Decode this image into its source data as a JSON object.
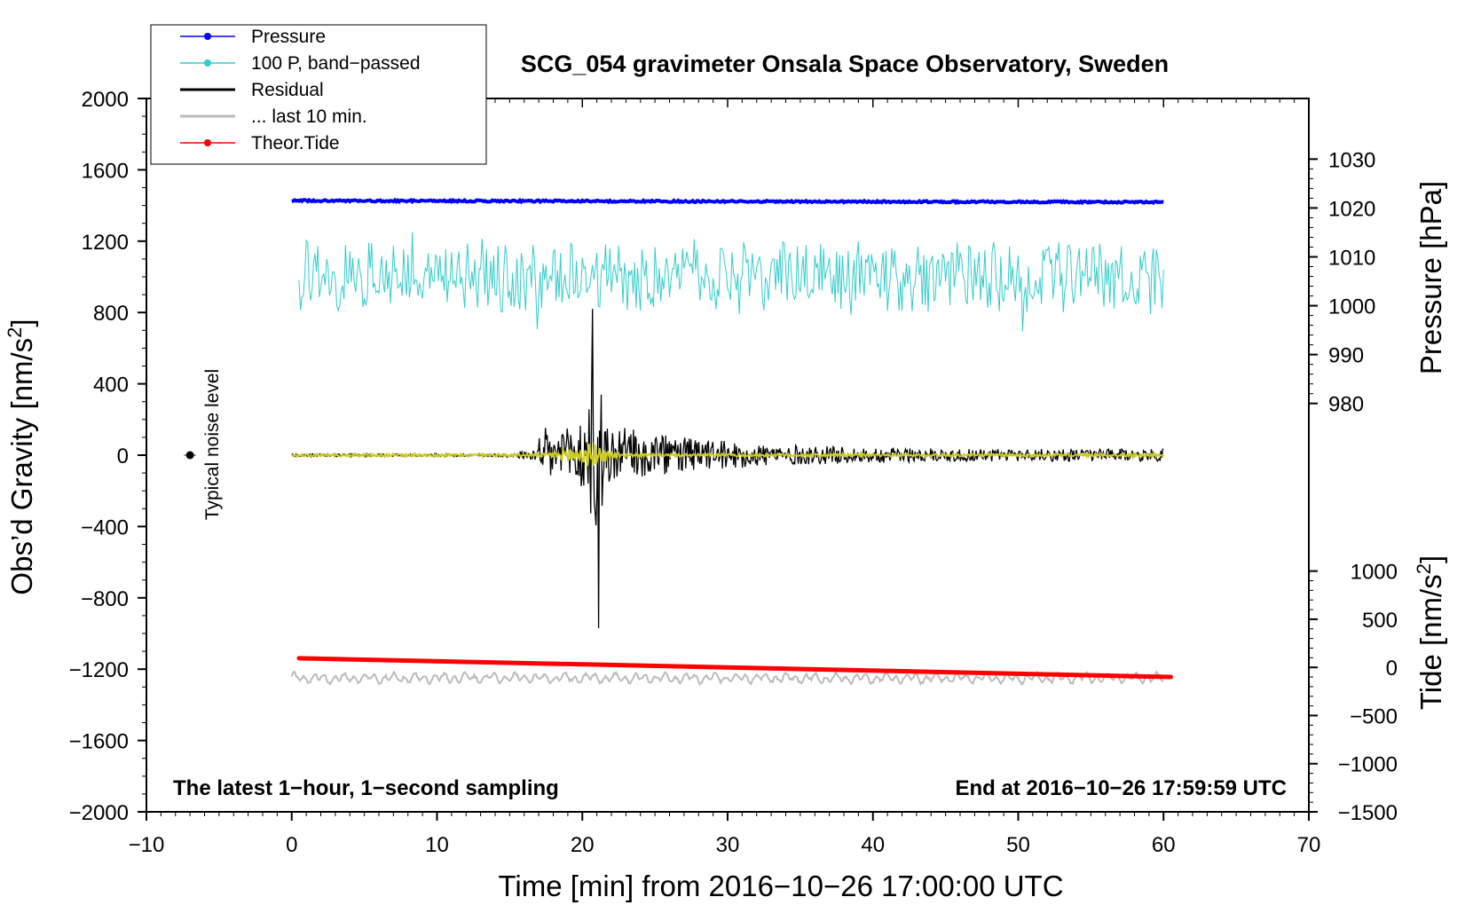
{
  "chart_data": {
    "type": "line",
    "title": "SCG_054 gravimeter Onsala Space Observatory, Sweden",
    "xlabel": "Time [min] from 2016−10−26 17:00:00 UTC",
    "ylabel_left": "Obs’d Gravity [nm/s",
    "ylabel_left_sup": "2",
    "ylabel_left_close": "]",
    "ylabel_right_pressure": "Pressure [hPa]",
    "ylabel_right_tide": "Tide [nm/s",
    "ylabel_right_tide_sup": "2",
    "ylabel_right_tide_close": "]",
    "xlim": [
      -10,
      70
    ],
    "ylim_left": [
      -2000,
      2000
    ],
    "x_ticks": [
      "−10",
      "0",
      "10",
      "20",
      "30",
      "40",
      "50",
      "60",
      "70"
    ],
    "x_tick_values": [
      -10,
      0,
      10,
      20,
      30,
      40,
      50,
      60,
      70
    ],
    "y_left_ticks": [
      "2000",
      "1600",
      "1200",
      "800",
      "400",
      "0",
      "−400",
      "−800",
      "−1200",
      "−1600",
      "−2000"
    ],
    "y_left_tick_values": [
      2000,
      1600,
      1200,
      800,
      400,
      0,
      -400,
      -800,
      -1200,
      -1600,
      -2000
    ],
    "pressure_axis": {
      "range_hpa": [
        980,
        1030
      ],
      "maps_to_gravity": [
        290,
        1660
      ],
      "ticks": [
        "1030",
        "1020",
        "1010",
        "1000",
        "990",
        "980"
      ],
      "tick_values": [
        1030,
        1020,
        1010,
        1000,
        990,
        980
      ]
    },
    "tide_axis": {
      "range": [
        -1500,
        1000
      ],
      "maps_to_gravity": [
        -2000,
        -650
      ],
      "ticks": [
        "1000",
        "500",
        "0",
        "−500",
        "−1000",
        "−1500"
      ],
      "tick_values": [
        1000,
        500,
        0,
        -500,
        -1000,
        -1500
      ]
    },
    "legend": [
      {
        "label": "Pressure",
        "color": "#0000ff",
        "marker": true
      },
      {
        "label": "100 P, band−passed",
        "color": "#33cccc",
        "marker": true
      },
      {
        "label": "Residual",
        "color": "#000000",
        "marker": false
      },
      {
        "label": "... last 10 min.",
        "color": "#bbbbbb",
        "marker": false
      },
      {
        "label": "Theor.Tide",
        "color": "#ff0000",
        "marker": true
      }
    ],
    "series": [
      {
        "name": "Pressure",
        "axis": "pressure",
        "color": "#0000ff",
        "x_range_min": [
          0,
          60
        ],
        "value_start_hpa": 1021.5,
        "value_end_hpa": 1021.2
      },
      {
        "name": "100 P, band-passed",
        "axis": "gravity",
        "color": "#33cccc",
        "x_range_min": [
          0.5,
          60
        ],
        "center_nm_s2": 1000,
        "amplitude_nm_s2": 320
      },
      {
        "name": "Residual",
        "axis": "gravity",
        "color": "#000000",
        "x_range_min": [
          0,
          60
        ],
        "baseline_nm_s2": 0,
        "event_onset_min": 17,
        "peak_min": 21,
        "peak_max_nm_s2": 820,
        "peak_min_nm_s2": -970
      },
      {
        "name": "... last 10 min.",
        "axis": "gravity",
        "color": "#bbbbbb",
        "x_range_min": [
          0,
          60
        ],
        "center_nm_s2": -1250,
        "amplitude_nm_s2": 50
      },
      {
        "name": "Theor.Tide",
        "axis": "tide",
        "color": "#ff0000",
        "x_range_min": [
          0.5,
          60.5
        ],
        "value_start_nm_s2": 95,
        "value_end_nm_s2": -100
      }
    ],
    "noise_marker": {
      "x": -7,
      "y": 0,
      "label": "Typical noise level"
    },
    "note_left": "The latest 1−hour, 1−second sampling",
    "note_right": "End at 2016−10−26 17:59:59 UTC"
  }
}
